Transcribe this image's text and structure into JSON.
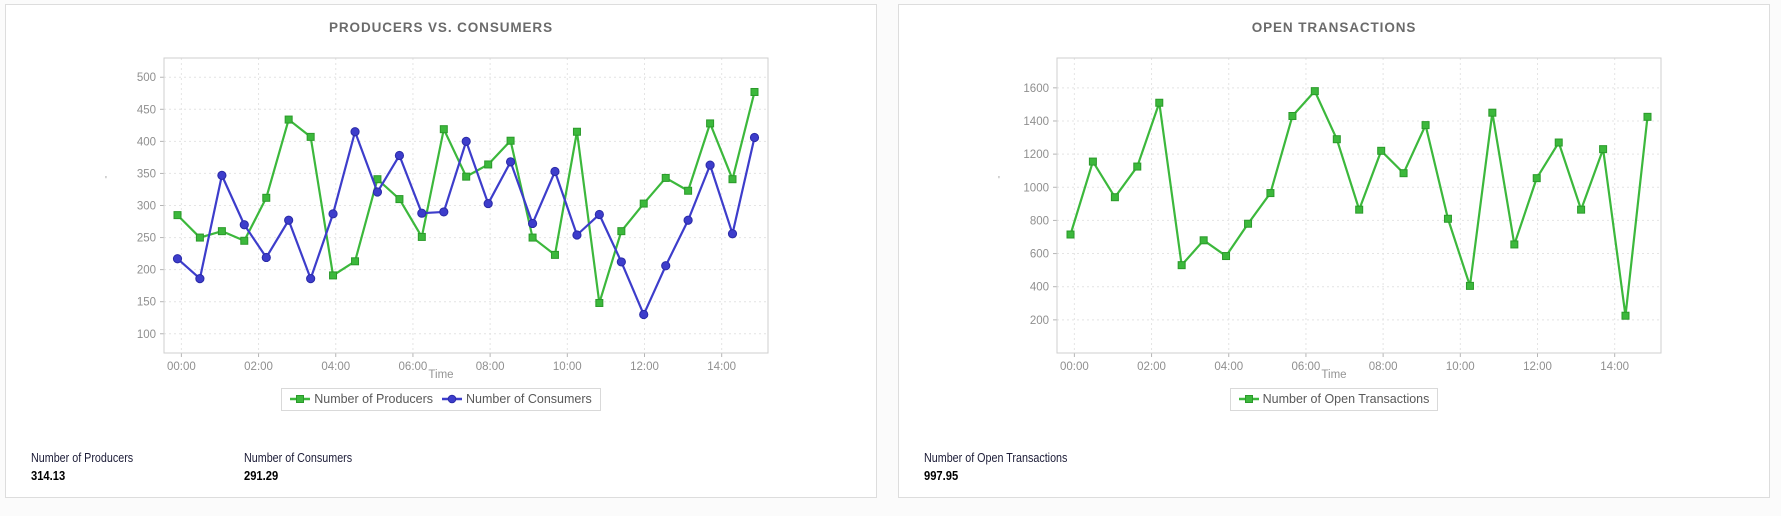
{
  "colors": {
    "producers_green": "#3cb83c",
    "producers_green_edge": "#2a9a2a",
    "consumers_blue": "#3d3dcb",
    "consumers_blue_edge": "#2a2aa8",
    "title_gray": "#6b6b6b",
    "axis_label_gray": "#8f8f8f"
  },
  "panels": [
    {
      "title": "PRODUCERS VS. CONSUMERS",
      "y_axis_mini_label": "'",
      "xlabel": "Time",
      "legend": [
        {
          "label": "Number of Producers",
          "color": "#3cb83c",
          "marker": "square"
        },
        {
          "label": "Number of Consumers",
          "color": "#3d3dcb",
          "marker": "circle"
        }
      ],
      "stats": [
        {
          "label": "Number of Producers",
          "value": "314.13"
        },
        {
          "label": "Number of Consumers",
          "value": "291.29"
        }
      ]
    },
    {
      "title": "OPEN TRANSACTIONS",
      "y_axis_mini_label": "'",
      "xlabel": "Time",
      "legend": [
        {
          "label": "Number of Open Transactions",
          "color": "#3cb83c",
          "marker": "square"
        }
      ],
      "stats": [
        {
          "label": "Number of Open Transactions",
          "value": "997.95"
        }
      ]
    }
  ],
  "chart_data": [
    {
      "type": "line",
      "title": "PRODUCERS VS. CONSUMERS",
      "xlabel": "Time",
      "ylabel": "'",
      "grid": true,
      "legend_position": "bottom",
      "xlim": [
        -0.45,
        15.2
      ],
      "ylim": [
        70,
        530
      ],
      "y_ticks": [
        100,
        150,
        200,
        250,
        300,
        350,
        400,
        450,
        500
      ],
      "x_tick_values": [
        0,
        2,
        4,
        6,
        8,
        10,
        12,
        14
      ],
      "x_tick_labels": [
        "00:00",
        "02:00",
        "04:00",
        "06:00",
        "08:00",
        "10:00",
        "12:00",
        "14:00"
      ],
      "x_hours": [
        -0.1,
        0.48,
        1.05,
        1.63,
        2.2,
        2.78,
        3.35,
        3.93,
        4.5,
        5.08,
        5.65,
        6.23,
        6.8,
        7.38,
        7.95,
        8.53,
        9.1,
        9.68,
        10.25,
        10.83,
        11.4,
        11.98,
        12.55,
        13.13,
        13.7,
        14.28,
        14.85
      ],
      "series": [
        {
          "name": "Number of Producers",
          "color": "#3cb83c",
          "edge_color": "#2a9a2a",
          "marker": "square",
          "values": [
            285,
            250,
            260,
            245,
            312,
            434,
            407,
            191,
            213,
            341,
            310,
            251,
            419,
            345,
            364,
            401,
            250,
            223,
            415,
            148,
            260,
            303,
            343,
            323,
            428,
            341,
            477
          ]
        },
        {
          "name": "Number of Consumers",
          "color": "#3d3dcb",
          "edge_color": "#2a2aa8",
          "marker": "circle",
          "values": [
            217,
            186,
            347,
            270,
            219,
            277,
            186,
            287,
            415,
            321,
            378,
            288,
            290,
            400,
            303,
            368,
            272,
            353,
            254,
            286,
            212,
            130,
            206,
            277,
            363,
            256,
            406
          ]
        }
      ]
    },
    {
      "type": "line",
      "title": "OPEN TRANSACTIONS",
      "xlabel": "Time",
      "ylabel": "'",
      "grid": true,
      "legend_position": "bottom",
      "xlim": [
        -0.45,
        15.2
      ],
      "ylim": [
        0,
        1780
      ],
      "y_ticks": [
        200,
        400,
        600,
        800,
        1000,
        1200,
        1400,
        1600
      ],
      "x_tick_values": [
        0,
        2,
        4,
        6,
        8,
        10,
        12,
        14
      ],
      "x_tick_labels": [
        "00:00",
        "02:00",
        "04:00",
        "06:00",
        "08:00",
        "10:00",
        "12:00",
        "14:00"
      ],
      "x_hours": [
        -0.1,
        0.48,
        1.05,
        1.63,
        2.2,
        2.78,
        3.35,
        3.93,
        4.5,
        5.08,
        5.65,
        6.23,
        6.8,
        7.38,
        7.95,
        8.53,
        9.1,
        9.68,
        10.25,
        10.83,
        11.4,
        11.98,
        12.55,
        13.13,
        13.7,
        14.28,
        14.85
      ],
      "series": [
        {
          "name": "Number of Open Transactions",
          "color": "#3cb83c",
          "edge_color": "#2a9a2a",
          "marker": "square",
          "values": [
            715,
            1155,
            940,
            1125,
            1510,
            530,
            680,
            585,
            780,
            965,
            1430,
            1580,
            1290,
            865,
            1220,
            1085,
            1375,
            810,
            405,
            1450,
            655,
            1055,
            1270,
            865,
            1230,
            225,
            1425
          ]
        }
      ]
    }
  ]
}
